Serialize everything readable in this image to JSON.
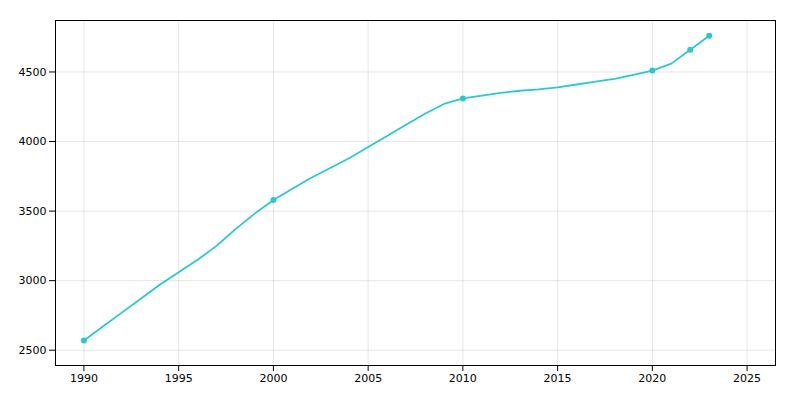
{
  "chart_data": {
    "type": "line",
    "x": [
      1990,
      1991,
      1992,
      1993,
      1994,
      1995,
      1996,
      1997,
      1998,
      1999,
      2000,
      2001,
      2002,
      2003,
      2004,
      2005,
      2006,
      2007,
      2008,
      2009,
      2010,
      2011,
      2012,
      2013,
      2014,
      2015,
      2016,
      2017,
      2018,
      2019,
      2020,
      2021,
      2022,
      2023
    ],
    "series": [
      {
        "type": "line",
        "color": "#2dc8c8",
        "values": [
          2570,
          2670,
          2770,
          2870,
          2970,
          3060,
          3150,
          3250,
          3370,
          3480,
          3580,
          3660,
          3740,
          3810,
          3880,
          3960,
          4040,
          4120,
          4200,
          4270,
          4310,
          4330,
          4350,
          4365,
          4375,
          4390,
          4410,
          4430,
          4450,
          4480,
          4510,
          4560,
          4660,
          4760
        ]
      },
      {
        "type": "scatter",
        "marker": "circle",
        "color": "#2dc8c8",
        "values": [
          2570,
          null,
          null,
          null,
          null,
          null,
          null,
          null,
          null,
          null,
          3580,
          null,
          null,
          null,
          null,
          null,
          null,
          null,
          null,
          null,
          4310,
          null,
          null,
          null,
          null,
          null,
          null,
          null,
          null,
          null,
          4510,
          null,
          4660,
          4760
        ]
      }
    ],
    "xlim": [
      1988.5,
      2026.5
    ],
    "ylim": [
      2390,
      4870
    ],
    "xticks": [
      1990,
      1995,
      2000,
      2005,
      2010,
      2015,
      2020,
      2025
    ],
    "yticks": [
      2500,
      3000,
      3500,
      4000,
      4500
    ],
    "grid": true
  }
}
